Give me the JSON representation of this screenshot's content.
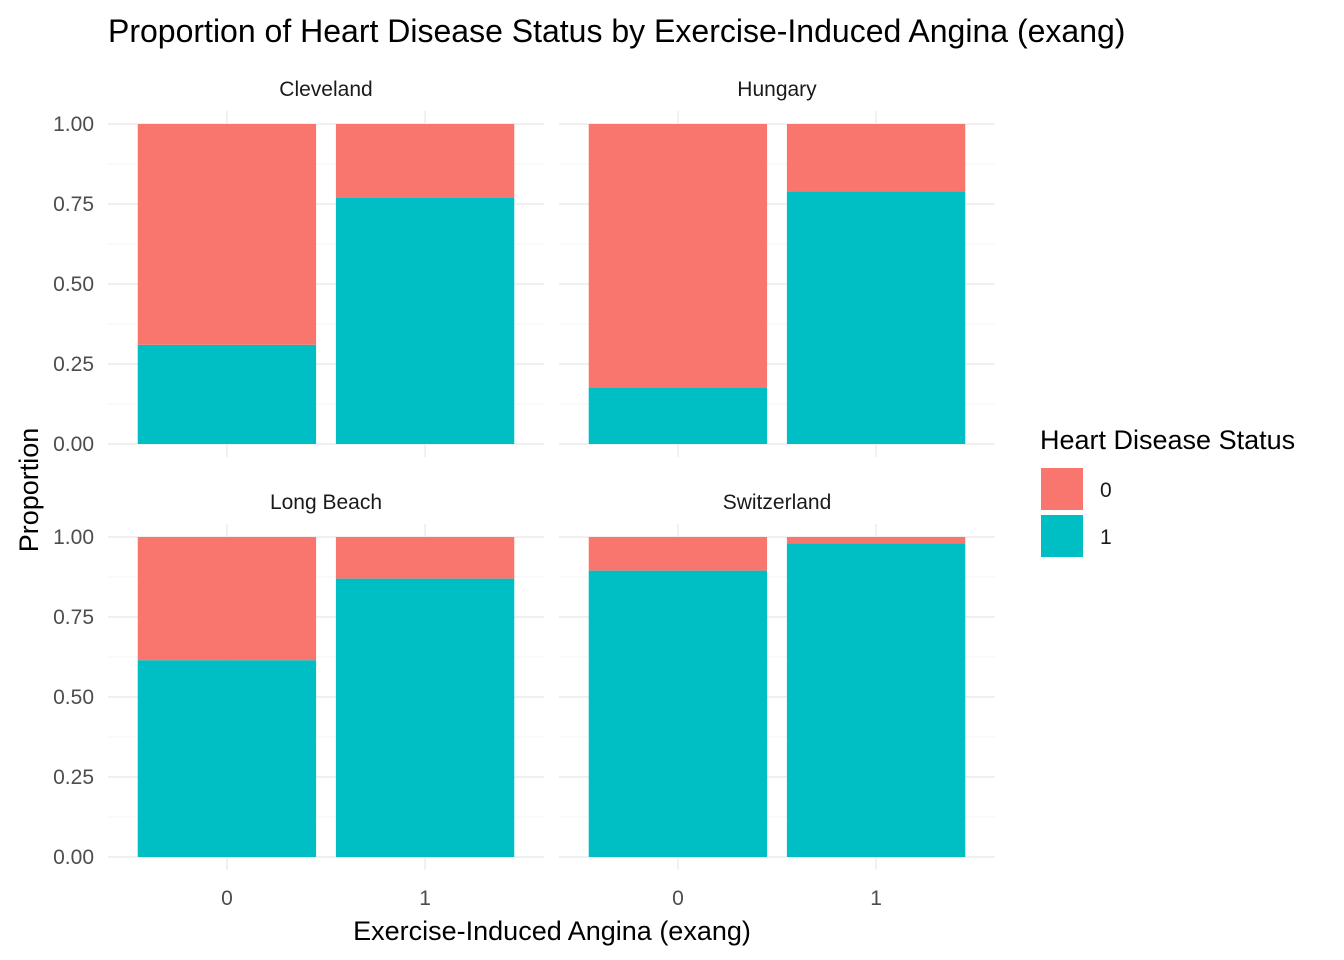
{
  "chart_data": {
    "type": "bar",
    "stacked": true,
    "faceted": true,
    "title": "Proportion of Heart Disease Status by Exercise-Induced Angina (exang)",
    "xlabel": "Exercise-Induced Angina (exang)",
    "ylabel": "Proportion",
    "ylim": [
      0,
      1
    ],
    "y_ticks": [
      "0.00",
      "0.25",
      "0.50",
      "0.75",
      "1.00"
    ],
    "categories": [
      "0",
      "1"
    ],
    "grid": true,
    "legend": {
      "title": "Heart Disease Status",
      "placement": "right",
      "entries": [
        {
          "label": "0",
          "color": "#F8766D"
        },
        {
          "label": "1",
          "color": "#00BFC4"
        }
      ]
    },
    "facets": [
      {
        "name": "Cleveland",
        "series": [
          {
            "name": "0",
            "values": [
              0.69,
              0.23
            ]
          },
          {
            "name": "1",
            "values": [
              0.31,
              0.77
            ]
          }
        ]
      },
      {
        "name": "Hungary",
        "series": [
          {
            "name": "0",
            "values": [
              0.825,
              0.21
            ]
          },
          {
            "name": "1",
            "values": [
              0.175,
              0.79
            ]
          }
        ]
      },
      {
        "name": "Long Beach",
        "series": [
          {
            "name": "0",
            "values": [
              0.385,
              0.13
            ]
          },
          {
            "name": "1",
            "values": [
              0.615,
              0.87
            ]
          }
        ]
      },
      {
        "name": "Switzerland",
        "series": [
          {
            "name": "0",
            "values": [
              0.105,
              0.02
            ]
          },
          {
            "name": "1",
            "values": [
              0.895,
              0.98
            ]
          }
        ]
      }
    ]
  }
}
